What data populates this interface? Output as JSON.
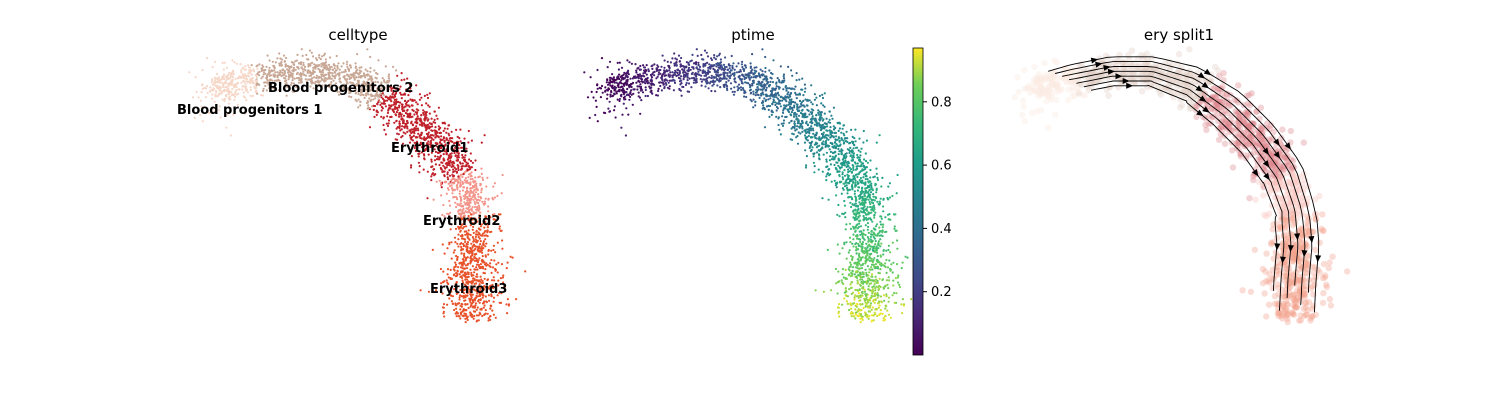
{
  "chart_data": [
    {
      "type": "scatter",
      "title": "celltype",
      "series": [
        {
          "name": "Blood progenitors 1",
          "color": "#f6d7c7"
        },
        {
          "name": "Blood progenitors 2",
          "color": "#c8a795"
        },
        {
          "name": "Erythroid1",
          "color": "#c0202a"
        },
        {
          "name": "Erythroid2",
          "color": "#f3958a"
        },
        {
          "name": "Erythroid3",
          "color": "#e8522a"
        }
      ],
      "annotations": [
        "Blood progenitors 2",
        "Blood progenitors 1",
        "Erythroid1",
        "Erythroid2",
        "Erythroid3"
      ]
    },
    {
      "type": "scatter",
      "title": "ptime",
      "colorscale": "viridis",
      "colorbar": {
        "ticks": [
          "0.2",
          "0.4",
          "0.6",
          "0.8"
        ],
        "range": [
          0.0,
          0.97
        ]
      }
    },
    {
      "type": "scatter",
      "title": "ery split1",
      "overlay": "velocity streamlines",
      "colors": [
        "#f6d7c7",
        "#c8a795",
        "#c0202a",
        "#f3958a",
        "#e8522a"
      ]
    }
  ]
}
